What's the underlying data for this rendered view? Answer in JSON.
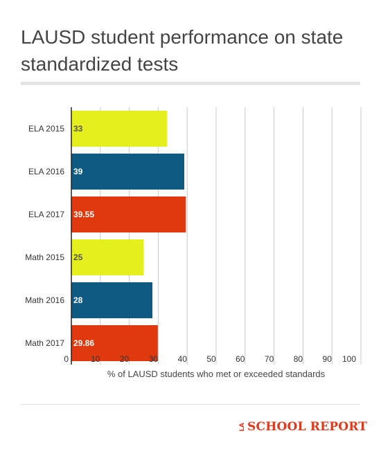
{
  "title": "LAUSD student performance on state standardized tests",
  "logo": {
    "prefix": "LA",
    "text": "SCHOOL REPORT"
  },
  "chart_data": {
    "type": "bar",
    "orientation": "horizontal",
    "categories": [
      "ELA 2015",
      "ELA 2016",
      "ELA 2017",
      "Math 2015",
      "Math 2016",
      "Math 2017"
    ],
    "values": [
      33,
      39,
      39.55,
      25,
      28,
      29.86
    ],
    "value_labels": [
      "33",
      "39",
      "39.55",
      "25",
      "28",
      "29.86"
    ],
    "bar_colors": [
      "#e5ef1d",
      "#0f5a82",
      "#e0390e",
      "#e5ef1d",
      "#0f5a82",
      "#e0390e"
    ],
    "label_colors": [
      "#555555",
      "#ffffff",
      "#ffffff",
      "#555555",
      "#ffffff",
      "#ffffff"
    ],
    "xlabel": "% of LAUSD students who met or exceeded standards",
    "ylabel": "",
    "xlim": [
      0,
      100
    ],
    "xticks": [
      0,
      10,
      20,
      30,
      40,
      50,
      60,
      70,
      80,
      90,
      100
    ],
    "grid": true
  }
}
